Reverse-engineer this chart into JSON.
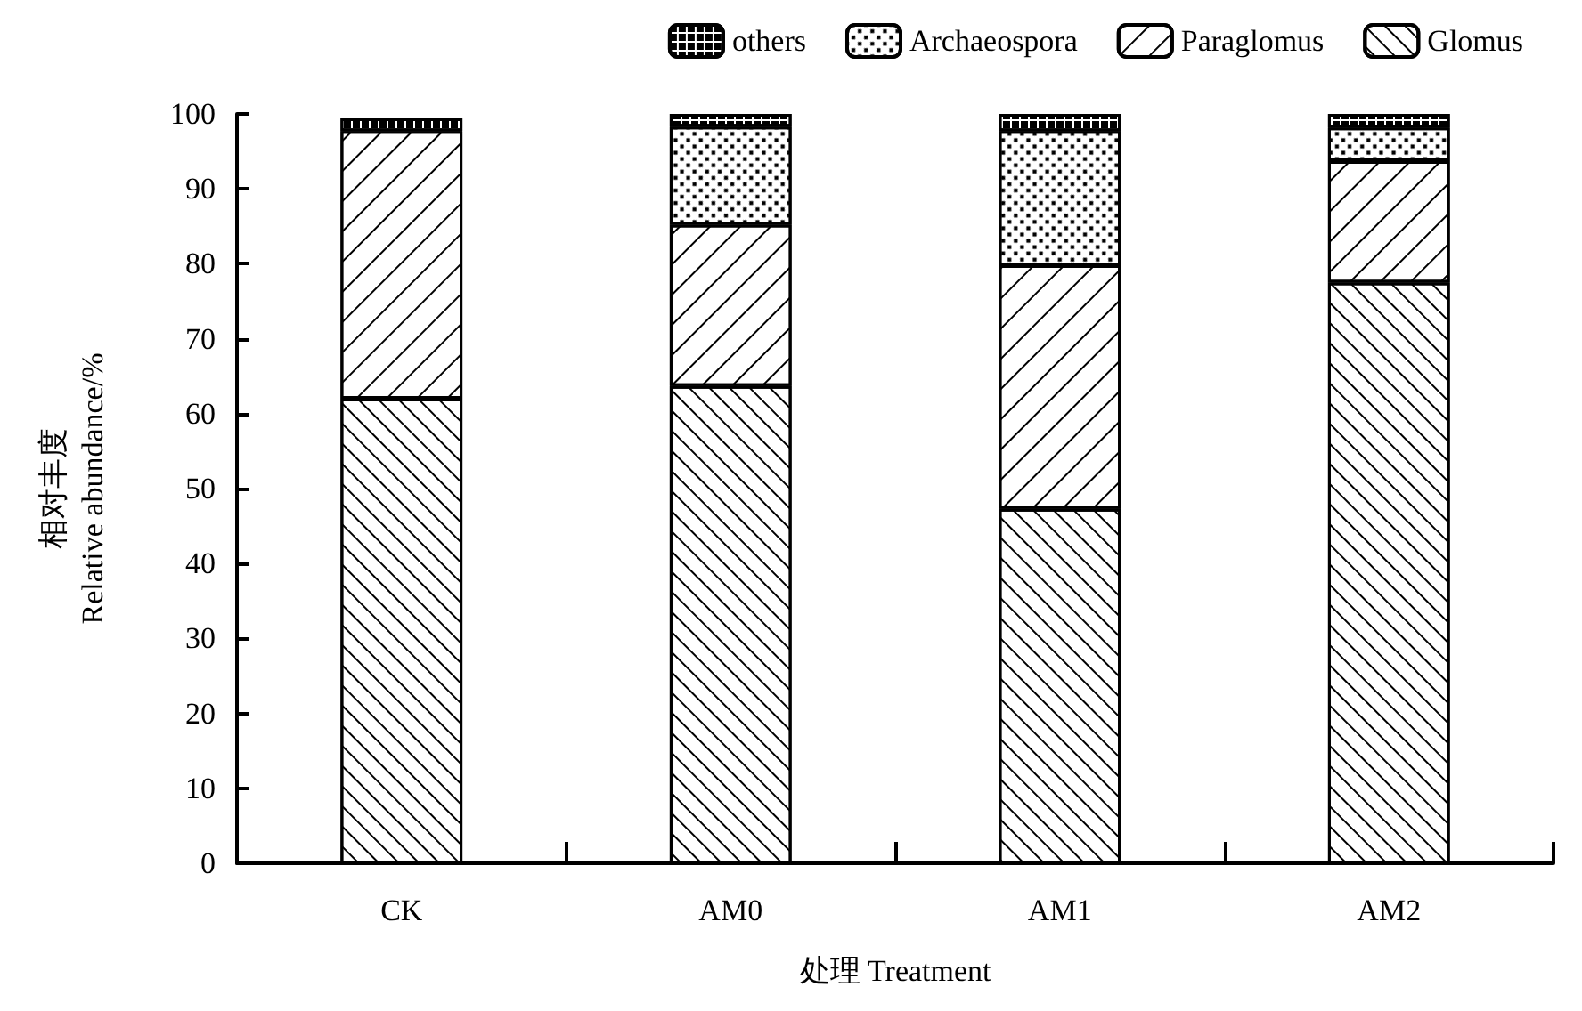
{
  "chart_data": {
    "type": "bar",
    "stacked": true,
    "xlabel": "处理 Treatment",
    "ylabel": "相对丰度\nRelative abundance/%",
    "categories": [
      "CK",
      "AM0",
      "AM1",
      "AM2"
    ],
    "ylim": [
      0,
      100
    ],
    "yticks": [
      0,
      10,
      20,
      30,
      40,
      50,
      60,
      70,
      80,
      90,
      100
    ],
    "grid": false,
    "legend": "top right",
    "series": [
      {
        "name": "Glomus",
        "color": "#ffffff",
        "values": [
          62.0,
          63.7,
          47.3,
          77.5
        ]
      },
      {
        "name": "Paraglomus",
        "color": "#ffffff",
        "values": [
          35.7,
          21.5,
          32.5,
          16.2
        ]
      },
      {
        "name": "Archaeospora",
        "color": "#ffffff",
        "values": [
          null,
          13.1,
          17.9,
          4.5
        ]
      },
      {
        "name": "others",
        "color": "#ffffff",
        "values": [
          1.7,
          1.7,
          2.3,
          1.8
        ]
      }
    ]
  }
}
